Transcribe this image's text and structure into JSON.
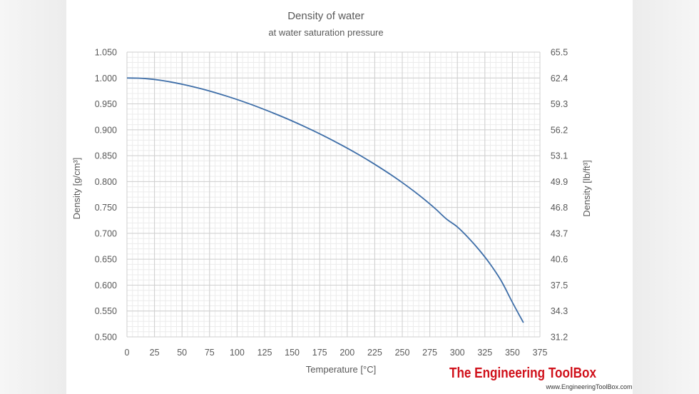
{
  "chart_data": {
    "type": "line",
    "title": "Density of water",
    "subtitle": "at water saturation pressure",
    "xlabel": "Temperature [°C]",
    "ylabel": "Density  [g/cm³]",
    "y2label": "Density  [lb/ft³]",
    "xlim": [
      0,
      375
    ],
    "ylim": [
      0.5,
      1.05
    ],
    "x_ticks": [
      "0",
      "25",
      "50",
      "75",
      "100",
      "125",
      "150",
      "175",
      "200",
      "225",
      "250",
      "275",
      "300",
      "325",
      "350",
      "375"
    ],
    "y_ticks": [
      "1.050",
      "1.000",
      "0.950",
      "0.900",
      "0.850",
      "0.800",
      "0.750",
      "0.700",
      "0.650",
      "0.600",
      "0.550",
      "0.500"
    ],
    "y2_ticks": [
      "65.5",
      "62.4",
      "59.3",
      "56.2",
      "53.1",
      "49.9",
      "46.8",
      "43.7",
      "40.6",
      "37.5",
      "34.3",
      "31.2"
    ],
    "grid": true,
    "series_color": "#3e6ea8",
    "series": [
      {
        "x": [
          0.01,
          10,
          20,
          30,
          40,
          50,
          60,
          70,
          80,
          90,
          100,
          110,
          120,
          130,
          140,
          150,
          160,
          170,
          180,
          190,
          200,
          210,
          220,
          230,
          240,
          250,
          260,
          270,
          280,
          290,
          300,
          310,
          320,
          330,
          340,
          350,
          360
        ],
        "y": [
          1.0,
          0.9997,
          0.9982,
          0.9957,
          0.9922,
          0.988,
          0.9832,
          0.9778,
          0.9718,
          0.9653,
          0.9584,
          0.951,
          0.9431,
          0.9348,
          0.9261,
          0.917,
          0.9074,
          0.8974,
          0.8869,
          0.8759,
          0.8645,
          0.8525,
          0.8399,
          0.8266,
          0.8127,
          0.798,
          0.7823,
          0.7656,
          0.7476,
          0.7279,
          0.7124,
          0.6915,
          0.6675,
          0.6401,
          0.6077,
          0.5667,
          0.5275
        ]
      }
    ]
  },
  "branding": {
    "logo_text": "The Engineering ToolBox",
    "logo_url_text": "www.EngineeringToolBox.com",
    "logo_color": "#d0101a"
  }
}
